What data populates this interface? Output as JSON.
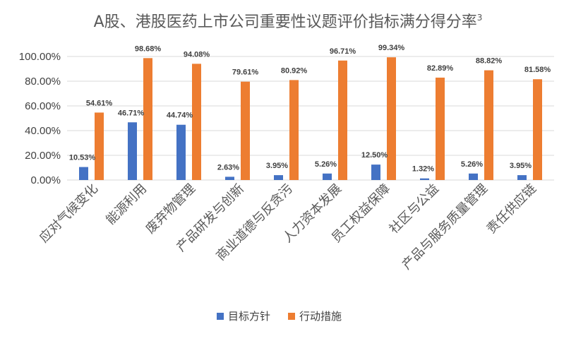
{
  "chart_data": {
    "type": "bar",
    "title": "A股、港股医药上市公司重要性议题评价指标满分得分率",
    "title_superscript": "3",
    "categories": [
      "应对气候变化",
      "能源利用",
      "废弃物管理",
      "产品研发与创新",
      "商业道德与反贪污",
      "人力资本发展",
      "员工权益保障",
      "社区与公益",
      "产品与服务质量管理",
      "责任供应链"
    ],
    "series": [
      {
        "name": "目标方针",
        "color": "#4472c4",
        "values": [
          10.53,
          46.71,
          44.74,
          2.63,
          3.95,
          5.26,
          12.5,
          1.32,
          5.26,
          3.95
        ],
        "labels": [
          "10.53%",
          "46.71%",
          "44.74%",
          "2.63%",
          "3.95%",
          "5.26%",
          "12.50%",
          "1.32%",
          "5.26%",
          "3.95%"
        ]
      },
      {
        "name": "行动措施",
        "color": "#ed7d31",
        "values": [
          54.61,
          98.68,
          94.08,
          79.61,
          80.92,
          96.71,
          99.34,
          82.89,
          88.82,
          81.58
        ],
        "labels": [
          "54.61%",
          "98.68%",
          "94.08%",
          "79.61%",
          "80.92%",
          "96.71%",
          "99.34%",
          "82.89%",
          "88.82%",
          "81.58%"
        ]
      }
    ],
    "ylim": [
      0,
      100
    ],
    "yticks": [
      0,
      20,
      40,
      60,
      80,
      100
    ],
    "ytick_labels": [
      "0.00%",
      "20.00%",
      "40.00%",
      "60.00%",
      "80.00%",
      "100.00%"
    ],
    "grid": true,
    "legend_position": "bottom"
  }
}
